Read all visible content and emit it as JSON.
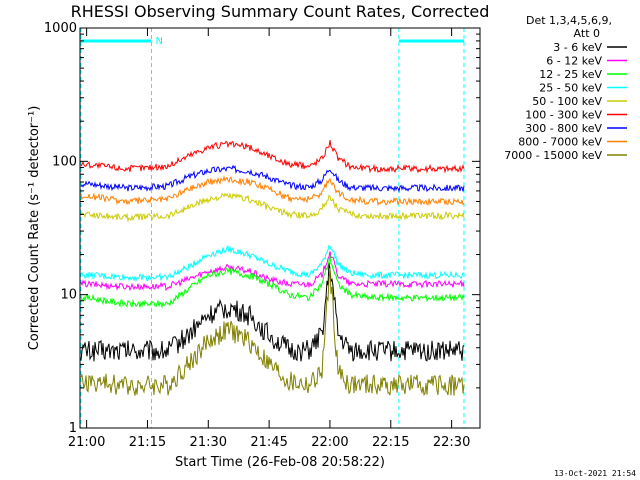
{
  "chart_data": {
    "type": "line",
    "title": "RHESSI Observing Summary Count Rates, Corrected",
    "xlabel": "Start Time (26-Feb-08 20:58:22)",
    "ylabel": "Corrected Count Rate (s⁻¹ detector⁻¹)",
    "ylog": true,
    "xlim": [
      "20:58:22",
      "22:37:00"
    ],
    "ylim": [
      1,
      1000
    ],
    "xticks": [
      "21:00",
      "21:15",
      "21:30",
      "21:45",
      "22:00",
      "22:15",
      "22:30"
    ],
    "yticks": [
      "1",
      "10",
      "100",
      "1000"
    ],
    "legend_header": [
      "Det 1,3,4,5,6,9,",
      "Att 0"
    ],
    "legend_position": "right",
    "flag_label": "N",
    "timestamp": "13-Oct-2021 21:54",
    "series": [
      {
        "name": "3 - 6 keV",
        "color": "#000000",
        "x": [
          "21:00",
          "21:10",
          "21:20",
          "21:25",
          "21:30",
          "21:35",
          "21:40",
          "21:45",
          "21:50",
          "21:55",
          "21:58",
          "22:00",
          "22:02",
          "22:05",
          "22:10",
          "22:20",
          "22:30",
          "22:35"
        ],
        "y": [
          3.8,
          3.8,
          3.8,
          5,
          7,
          8,
          7,
          5,
          3.8,
          3.8,
          5,
          17,
          5,
          3.8,
          3.8,
          3.8,
          3.8,
          3.8
        ]
      },
      {
        "name": "6 - 12 keV",
        "color": "#ff00ff",
        "x": [
          "21:00",
          "21:10",
          "21:20",
          "21:25",
          "21:30",
          "21:35",
          "21:40",
          "21:45",
          "21:50",
          "21:55",
          "21:58",
          "22:00",
          "22:02",
          "22:05",
          "22:10",
          "22:20",
          "22:30",
          "22:35"
        ],
        "y": [
          12,
          11.5,
          11.5,
          13,
          15,
          16,
          15,
          13,
          12,
          12,
          14,
          21,
          14,
          12,
          12,
          12,
          12,
          12
        ]
      },
      {
        "name": "12 - 25 keV",
        "color": "#00ff00",
        "x": [
          "21:00",
          "21:10",
          "21:20",
          "21:25",
          "21:30",
          "21:35",
          "21:40",
          "21:45",
          "21:50",
          "21:55",
          "21:58",
          "22:00",
          "22:02",
          "22:05",
          "22:10",
          "22:20",
          "22:30",
          "22:35"
        ],
        "y": [
          9.5,
          8.5,
          8.5,
          11,
          14,
          15,
          14,
          12,
          10,
          9.5,
          12,
          19,
          12,
          10,
          9.5,
          9.5,
          9.5,
          9.5
        ]
      },
      {
        "name": "25 - 50 keV",
        "color": "#00ffff",
        "x": [
          "21:00",
          "21:10",
          "21:20",
          "21:25",
          "21:30",
          "21:35",
          "21:40",
          "21:45",
          "21:50",
          "21:55",
          "21:58",
          "22:00",
          "22:02",
          "22:05",
          "22:10",
          "22:20",
          "22:30",
          "22:35"
        ],
        "y": [
          14,
          13.5,
          13.5,
          16,
          20,
          22,
          20,
          17,
          15,
          14,
          17,
          24,
          17,
          14.5,
          14,
          14,
          14,
          14
        ]
      },
      {
        "name": "50 - 100 keV",
        "color": "#cccc00",
        "x": [
          "21:00",
          "21:10",
          "21:20",
          "21:25",
          "21:30",
          "21:35",
          "21:40",
          "21:45",
          "21:50",
          "21:55",
          "21:58",
          "22:00",
          "22:02",
          "22:05",
          "22:10",
          "22:20",
          "22:30",
          "22:35"
        ],
        "y": [
          40,
          38,
          39,
          45,
          52,
          55,
          52,
          45,
          40,
          39,
          44,
          55,
          44,
          40,
          39,
          39,
          39,
          39
        ]
      },
      {
        "name": "100 - 300 keV",
        "color": "#ff0000",
        "x": [
          "21:00",
          "21:10",
          "21:20",
          "21:25",
          "21:30",
          "21:35",
          "21:40",
          "21:45",
          "21:50",
          "21:55",
          "21:58",
          "22:00",
          "22:02",
          "22:05",
          "22:10",
          "22:20",
          "22:30",
          "22:35"
        ],
        "y": [
          95,
          88,
          92,
          110,
          128,
          135,
          128,
          110,
          95,
          92,
          105,
          140,
          105,
          92,
          88,
          88,
          88,
          88
        ]
      },
      {
        "name": "300 - 800 keV",
        "color": "#0000ff",
        "x": [
          "21:00",
          "21:10",
          "21:20",
          "21:25",
          "21:30",
          "21:35",
          "21:40",
          "21:45",
          "21:50",
          "21:55",
          "21:58",
          "22:00",
          "22:02",
          "22:05",
          "22:10",
          "22:20",
          "22:30",
          "22:35"
        ],
        "y": [
          68,
          63,
          65,
          76,
          85,
          88,
          85,
          76,
          66,
          64,
          72,
          90,
          72,
          64,
          63,
          63,
          63,
          63
        ]
      },
      {
        "name": "800 - 7000 keV",
        "color": "#ff8000",
        "x": [
          "21:00",
          "21:10",
          "21:20",
          "21:25",
          "21:30",
          "21:35",
          "21:40",
          "21:45",
          "21:50",
          "21:55",
          "21:58",
          "22:00",
          "22:02",
          "22:05",
          "22:10",
          "22:20",
          "22:30",
          "22:35"
        ],
        "y": [
          55,
          50,
          52,
          62,
          70,
          74,
          70,
          62,
          53,
          52,
          58,
          75,
          58,
          52,
          50,
          50,
          50,
          50
        ]
      },
      {
        "name": "7000 - 15000 keV",
        "color": "#808000",
        "x": [
          "21:00",
          "21:10",
          "21:20",
          "21:25",
          "21:30",
          "21:35",
          "21:40",
          "21:45",
          "21:50",
          "21:55",
          "21:58",
          "22:00",
          "22:02",
          "22:05",
          "22:10",
          "22:20",
          "22:30",
          "22:35"
        ],
        "y": [
          2.2,
          2.1,
          2.1,
          3,
          4.5,
          5.5,
          4.5,
          3,
          2.2,
          2.1,
          2.6,
          15,
          2.6,
          2.1,
          2.1,
          2.1,
          2.1,
          2.1
        ]
      }
    ],
    "intervals": [
      {
        "start": "20:58:22",
        "end": "21:16:00"
      },
      {
        "start": "22:17:00",
        "end": "22:35:00"
      }
    ]
  }
}
